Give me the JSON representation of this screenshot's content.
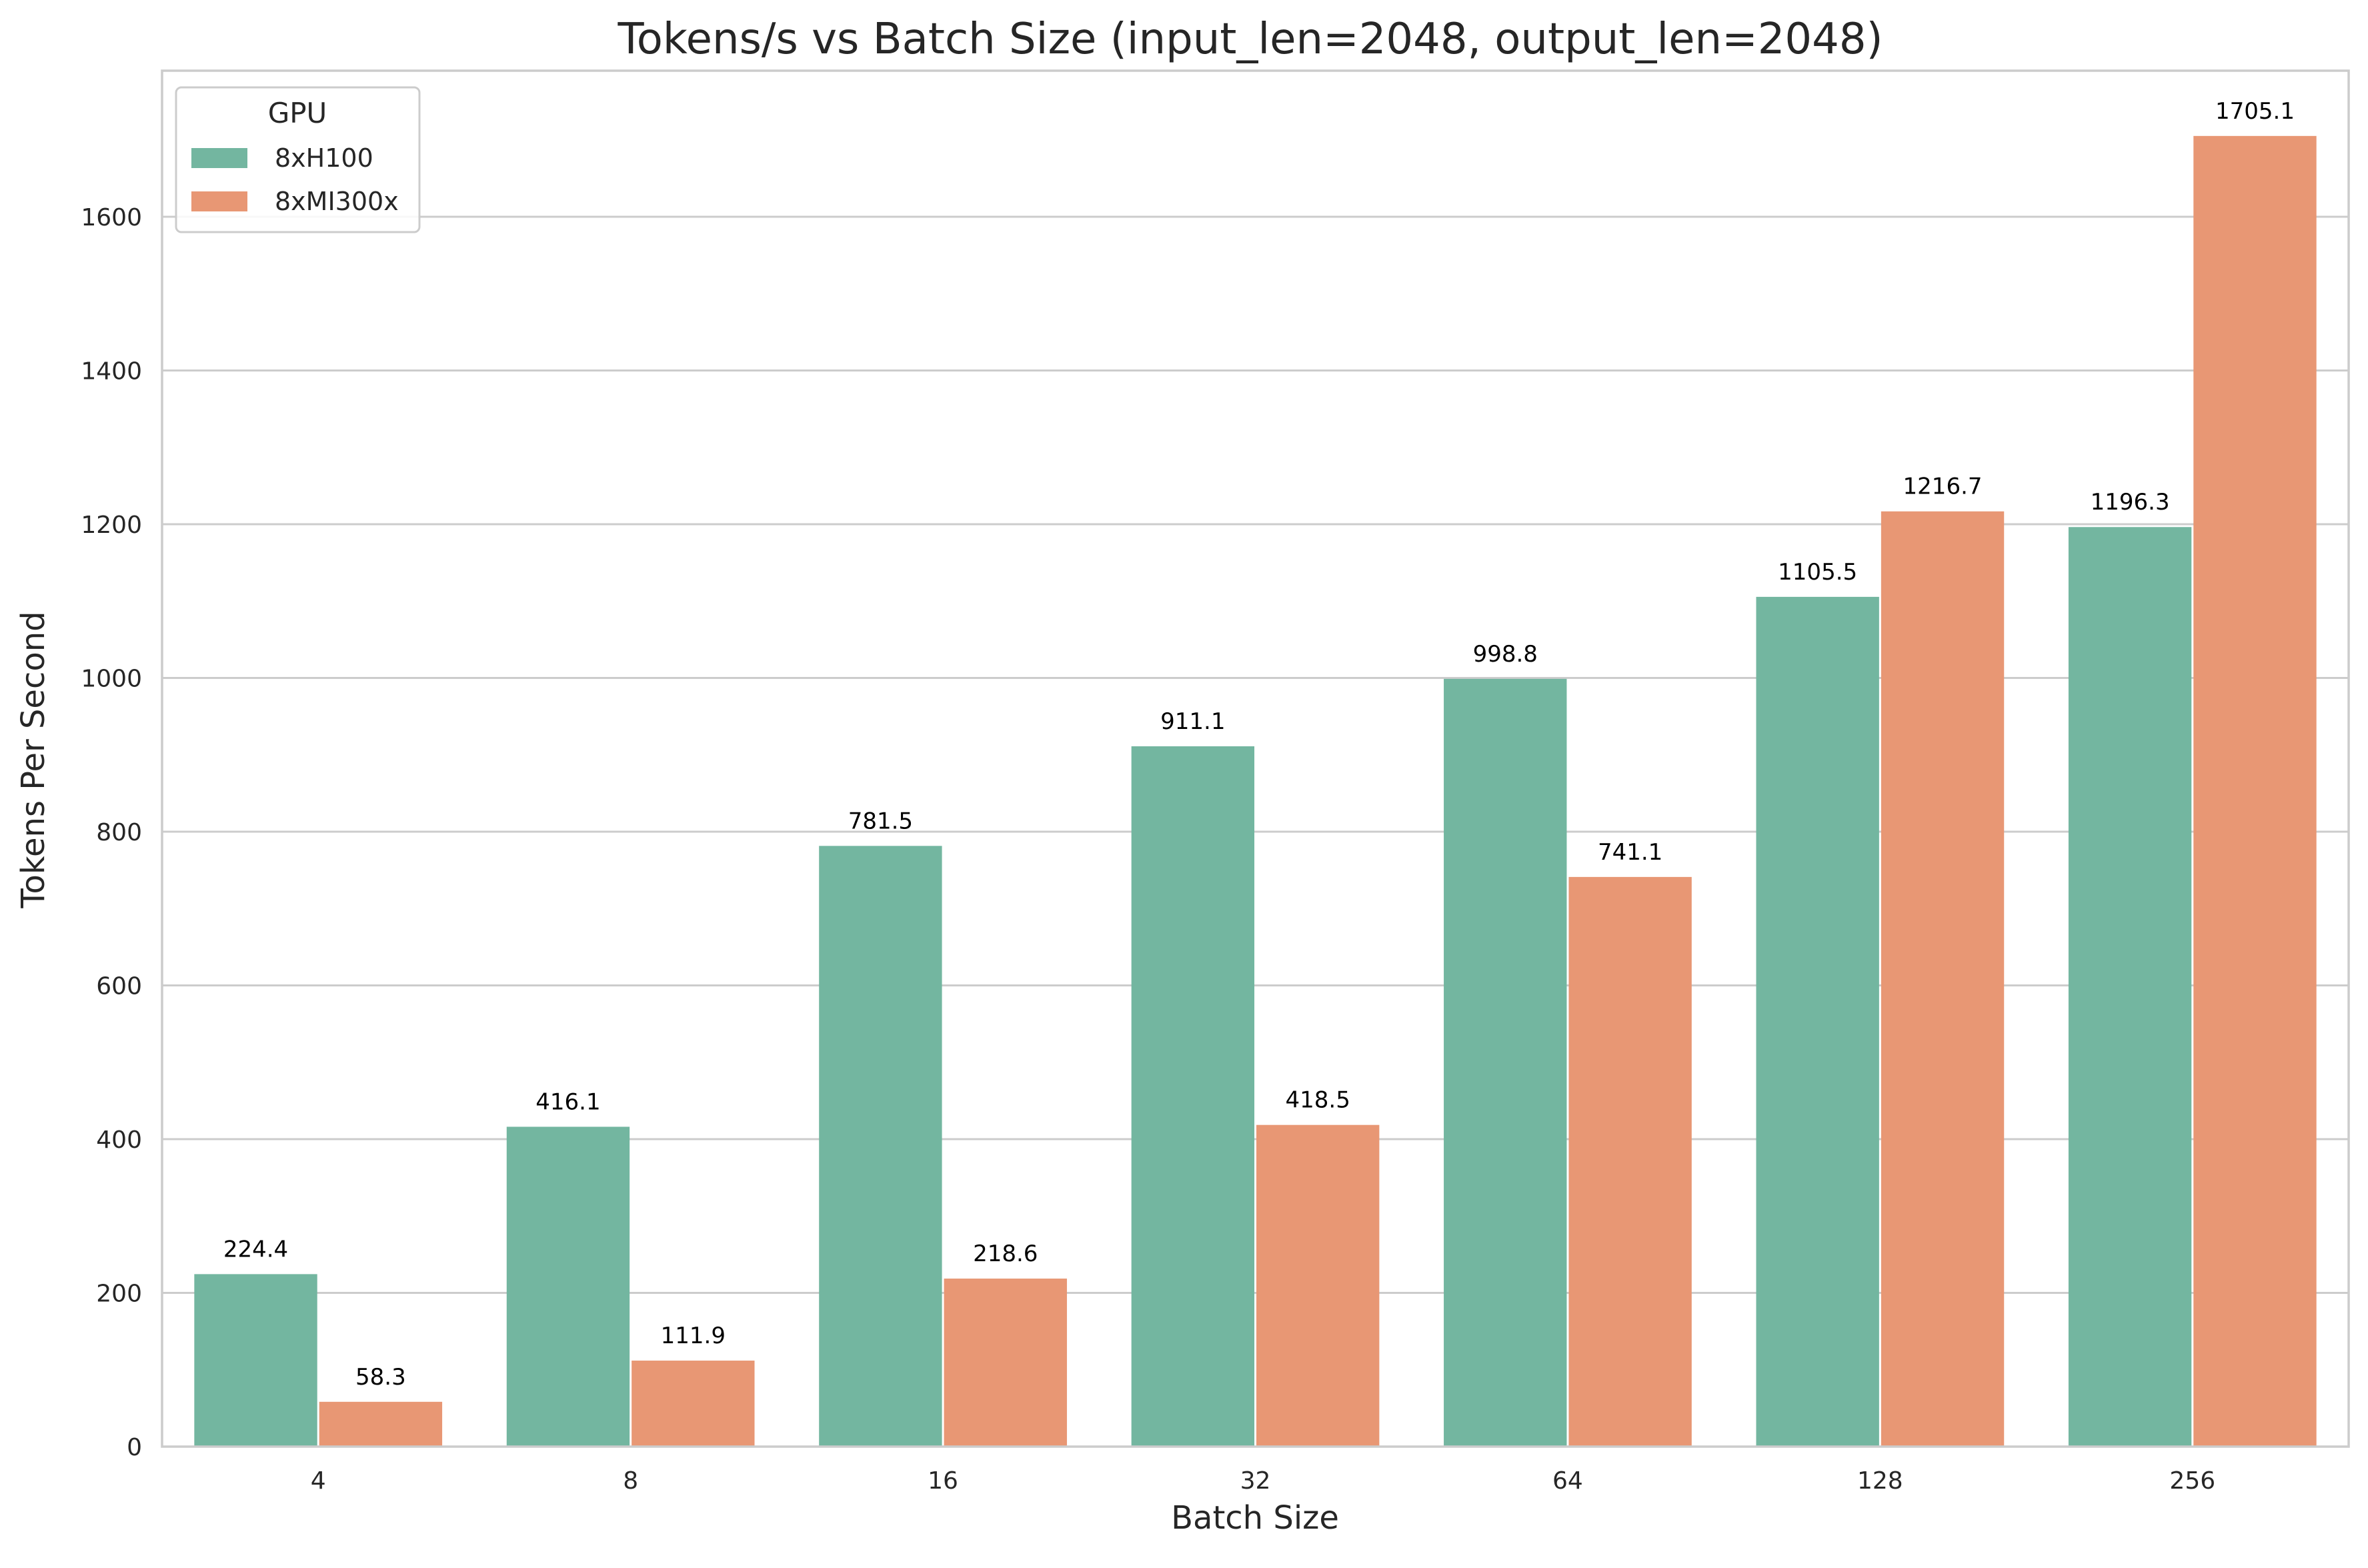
{
  "chart_data": {
    "type": "bar",
    "title": "Tokens/s vs Batch Size (input_len=2048, output_len=2048)",
    "xlabel": "Batch Size",
    "ylabel": "Tokens Per Second",
    "categories": [
      "4",
      "8",
      "16",
      "32",
      "64",
      "128",
      "256"
    ],
    "series": [
      {
        "name": "8xH100",
        "color": "#73b6a0",
        "values": [
          224.4,
          416.1,
          781.5,
          911.1,
          998.8,
          1105.5,
          1196.3
        ]
      },
      {
        "name": "8xMI300x",
        "color": "#e89774",
        "values": [
          58.3,
          111.9,
          218.6,
          418.5,
          741.1,
          1216.7,
          1705.1
        ]
      }
    ],
    "data_labels": [
      [
        "224.4",
        "416.1",
        "781.5",
        "911.1",
        "998.8",
        "1105.5",
        "1196.3"
      ],
      [
        "58.3",
        "111.9",
        "218.6",
        "418.5",
        "741.1",
        "1216.7",
        "1705.1"
      ]
    ],
    "ylim": [
      0,
      1790
    ],
    "yticks": [
      0,
      200,
      400,
      600,
      800,
      1000,
      1200,
      1400,
      1600
    ],
    "grid": true,
    "legend": {
      "title": "GPU",
      "position": "upper-left"
    }
  }
}
